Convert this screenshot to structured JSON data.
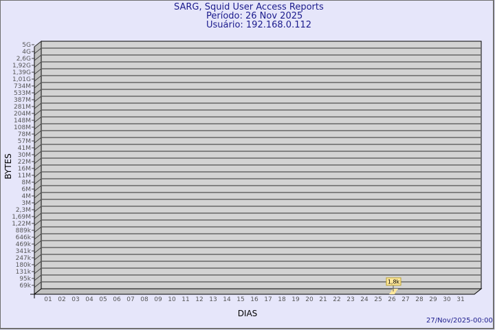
{
  "title": {
    "line1": "SARG, Squid User Access Reports",
    "line2": "Período: 26 Nov 2025",
    "line3": "Usuário: 192.168.0.112"
  },
  "footer_timestamp": "27/Nov/2025-00:00",
  "colors": {
    "background": "#e6e6fa",
    "plot": "#d3d3d3",
    "bar": "#ffe79a",
    "text": "#1a1a8c"
  },
  "chart_data": {
    "type": "bar",
    "style": "3d",
    "xlabel": "DIAS",
    "ylabel": "BYTES",
    "y_scale": "log",
    "grid": true,
    "x_ticks": [
      "01",
      "02",
      "03",
      "04",
      "05",
      "06",
      "07",
      "08",
      "09",
      "10",
      "11",
      "12",
      "13",
      "14",
      "15",
      "16",
      "17",
      "18",
      "19",
      "20",
      "21",
      "22",
      "23",
      "24",
      "25",
      "26",
      "27",
      "28",
      "29",
      "30",
      "31"
    ],
    "y_ticks": [
      "5G",
      "4G",
      "2,6G",
      "1,92G",
      "1,39G",
      "1,01G",
      "734M",
      "533M",
      "387M",
      "281M",
      "204M",
      "148M",
      "108M",
      "78M",
      "57M",
      "41M",
      "30M",
      "22M",
      "16M",
      "11M",
      "8M",
      "6M",
      "4M",
      "3M",
      "2,3M",
      "1,69M",
      "1,22M",
      "889k",
      "646k",
      "469k",
      "341k",
      "247k",
      "180k",
      "131k",
      "95k",
      "69k"
    ],
    "bars": [
      {
        "x": "26",
        "value": 1800,
        "label": "1,8k"
      }
    ]
  }
}
